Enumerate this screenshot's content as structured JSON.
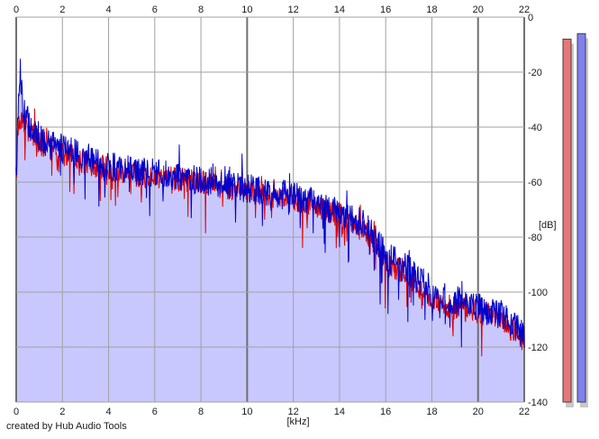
{
  "chart_data": {
    "type": "area",
    "xlabel": "[kHz]",
    "ylabel": "[dB]",
    "xlim": [
      0,
      22
    ],
    "ylim": [
      -140,
      0
    ],
    "x_ticks": [
      0,
      2,
      4,
      6,
      8,
      10,
      12,
      14,
      16,
      18,
      20,
      22
    ],
    "x_tick_labels": [
      "0",
      "2",
      "4",
      "6",
      "8",
      "10",
      "12",
      "14",
      "16",
      "18",
      "20",
      "22"
    ],
    "y_ticks": [
      0,
      -20,
      -40,
      -60,
      -80,
      -100,
      -120,
      -140
    ],
    "y_tick_labels": [
      "0",
      "-20",
      "-40",
      "-60",
      "-80",
      "-100",
      "-120",
      "-140"
    ],
    "x_ticks_position": "top and bottom",
    "y_ticks_position": "right",
    "grid": true,
    "series": [
      {
        "color": "#e00000",
        "x": [
          0,
          0.15,
          0.3,
          0.5,
          0.8,
          1.2,
          1.6,
          2.0,
          2.5,
          3.0,
          3.5,
          4.0,
          5.0,
          6.0,
          7.0,
          8.0,
          9.0,
          10.0,
          11.0,
          12.0,
          13.0,
          14.0,
          15.0,
          15.5,
          16.0,
          17.0,
          18.0,
          19.0,
          20.0,
          21.0,
          21.5,
          22.0
        ],
        "values": [
          -52,
          -36,
          -40,
          -38,
          -44,
          -47,
          -48,
          -50,
          -51,
          -53,
          -54,
          -55,
          -57,
          -58,
          -59,
          -60,
          -62,
          -63,
          -65,
          -66,
          -69,
          -72,
          -76,
          -82,
          -89,
          -94,
          -103,
          -106,
          -107,
          -110,
          -114,
          -119
        ]
      },
      {
        "color": "#0000cc",
        "x": [
          0,
          0.1,
          0.15,
          0.2,
          0.3,
          0.5,
          0.8,
          1.2,
          1.6,
          2.0,
          2.5,
          3.0,
          3.5,
          4.0,
          5.0,
          6.0,
          7.0,
          8.0,
          9.0,
          10.0,
          11.0,
          12.0,
          13.0,
          14.0,
          15.0,
          15.5,
          16.0,
          17.0,
          18.0,
          19.0,
          20.0,
          21.0,
          21.5,
          22.0
        ],
        "values": [
          -52,
          -30,
          -18,
          -22,
          -34,
          -38,
          -42,
          -45,
          -47,
          -48,
          -49,
          -51,
          -53,
          -54,
          -56,
          -57,
          -58,
          -59,
          -61,
          -62,
          -64,
          -65,
          -68,
          -71,
          -75,
          -80,
          -87,
          -92,
          -101,
          -103,
          -106,
          -108,
          -112,
          -116
        ]
      }
    ],
    "level_meters": [
      {
        "color": "#e87878",
        "value_db": -8
      },
      {
        "color": "#8080f0",
        "value_db": -6
      }
    ]
  },
  "footer": {
    "credit": "created by Hub Audio Tools"
  }
}
